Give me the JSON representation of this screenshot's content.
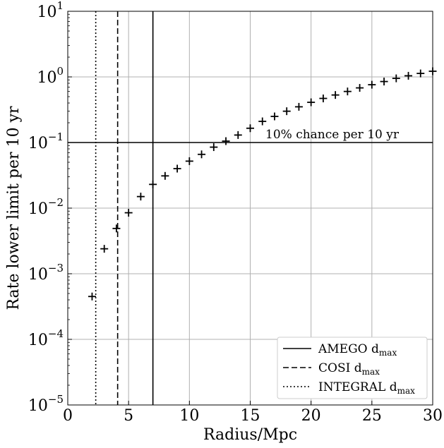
{
  "chart_data": {
    "type": "scatter",
    "title": "",
    "xlabel": "Radius/Mpc",
    "ylabel": "Rate lower limit per 10 yr",
    "xlim": [
      0,
      30
    ],
    "ylim": [
      1e-05,
      10
    ],
    "yscale": "log",
    "grid": true,
    "x_ticks": [
      0,
      5,
      10,
      15,
      20,
      25,
      30
    ],
    "y_ticks": [
      {
        "base": "10",
        "exp": "−5",
        "value": 1e-05
      },
      {
        "base": "10",
        "exp": "−4",
        "value": 0.0001
      },
      {
        "base": "10",
        "exp": "−3",
        "value": 0.001
      },
      {
        "base": "10",
        "exp": "−2",
        "value": 0.01
      },
      {
        "base": "10",
        "exp": "−1",
        "value": 0.1
      },
      {
        "base": "10",
        "exp": "0",
        "value": 1
      },
      {
        "base": "10",
        "exp": "1",
        "value": 10
      }
    ],
    "points": {
      "marker": "+",
      "x": [
        2,
        3,
        4,
        5,
        6,
        7,
        8,
        9,
        10,
        11,
        12,
        13,
        14,
        15,
        16,
        17,
        18,
        19,
        20,
        21,
        22,
        23,
        24,
        25,
        26,
        27,
        28,
        29,
        30
      ],
      "y": [
        0.00045,
        0.0024,
        0.0049,
        0.0085,
        0.015,
        0.023,
        0.031,
        0.04,
        0.052,
        0.066,
        0.085,
        0.105,
        0.13,
        0.165,
        0.21,
        0.25,
        0.3,
        0.35,
        0.41,
        0.47,
        0.53,
        0.6,
        0.68,
        0.76,
        0.85,
        0.95,
        1.04,
        1.13,
        1.22
      ]
    },
    "vertical_lines": [
      {
        "name": "AMEGO",
        "sub": "max",
        "x": 7.0,
        "style": "solid"
      },
      {
        "name": "COSI",
        "sub": "max",
        "x": 4.1,
        "style": "dashed"
      },
      {
        "name": "INTEGRAL",
        "sub": "max",
        "x": 2.3,
        "style": "dotted"
      }
    ],
    "horizontal_line": {
      "y": 0.1,
      "label": "10% chance per 10 yr"
    },
    "legend": {
      "position": "lower-right",
      "sub_prefix": "d"
    },
    "colors": {
      "lines": "#000000",
      "grid": "#b0b0b0"
    }
  }
}
